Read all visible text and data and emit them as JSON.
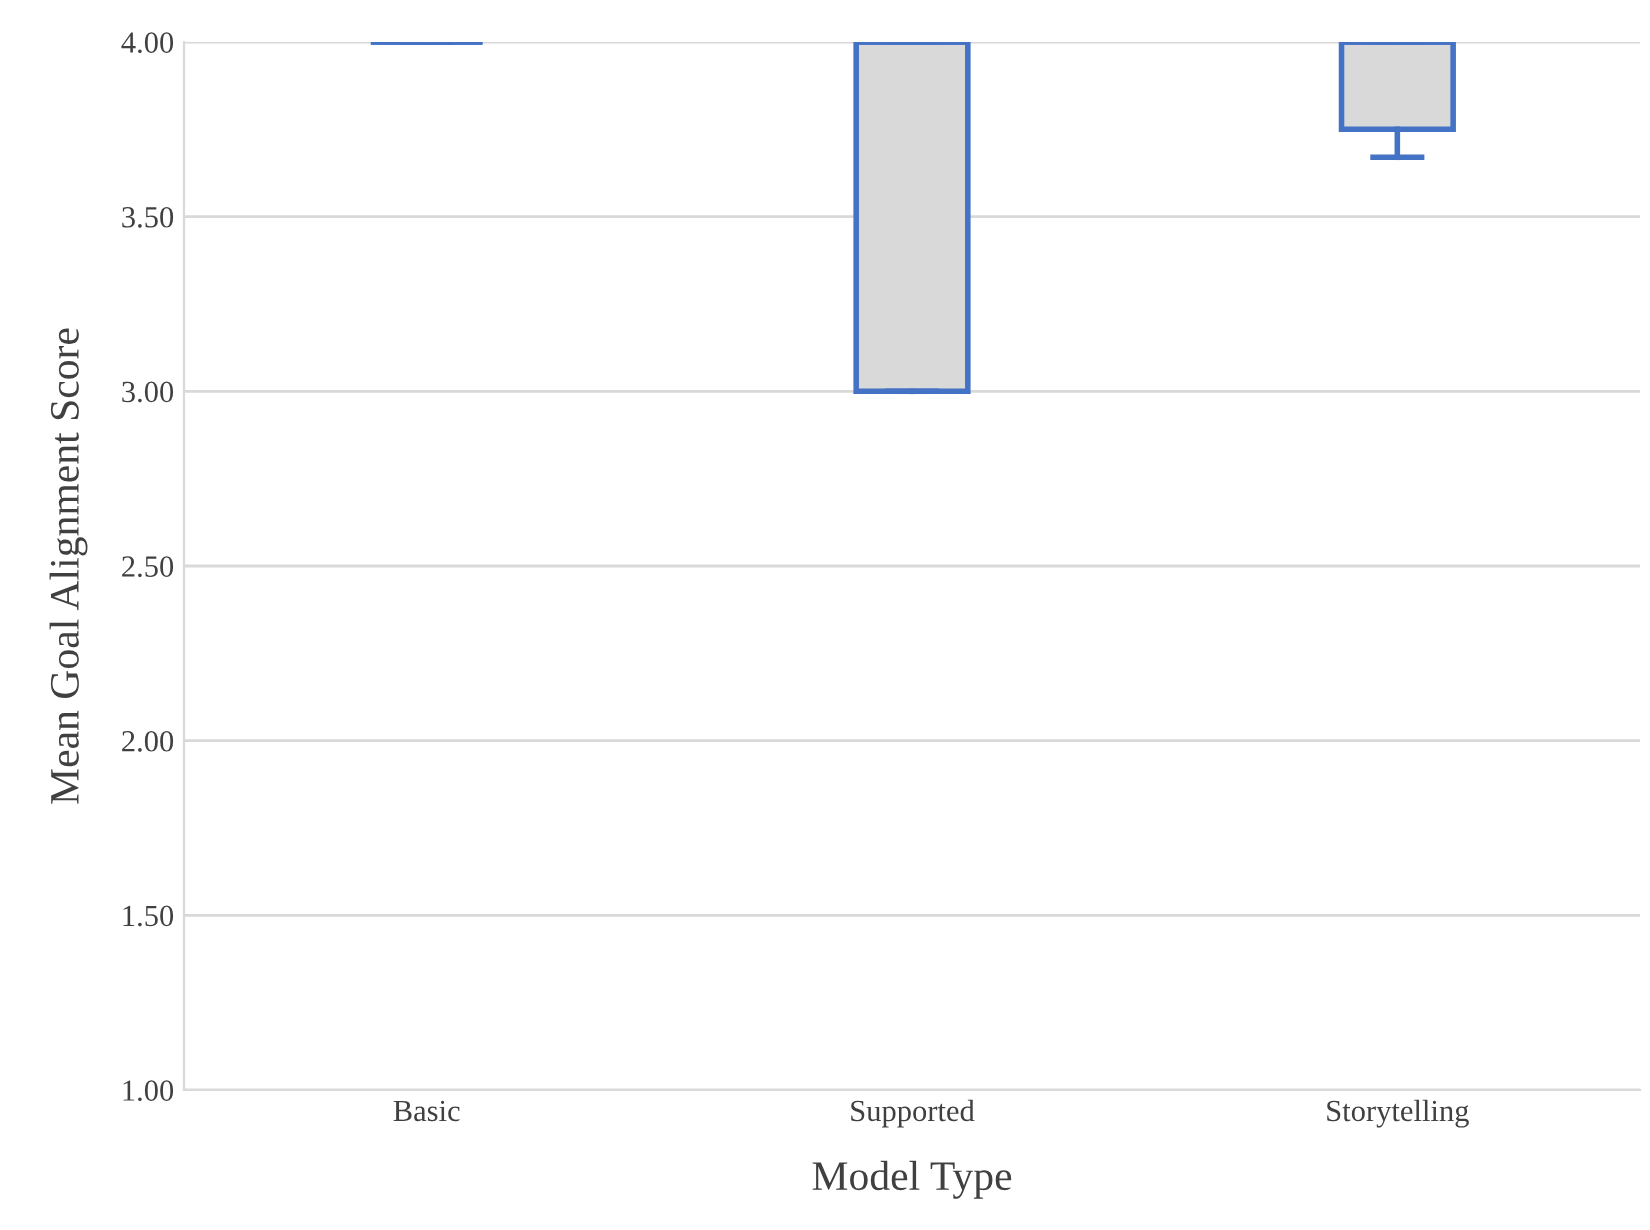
{
  "chart_data": {
    "type": "box",
    "xlabel": "Model Type",
    "ylabel": "Mean Goal Alignment Score",
    "categories": [
      "Basic",
      "Supported",
      "Storytelling"
    ],
    "boxes": [
      {
        "low": 4.0,
        "q1": 4.0,
        "median": 4.0,
        "q3": 4.0,
        "high": 4.0
      },
      {
        "low": 3.0,
        "q1": 3.0,
        "median": 4.0,
        "q3": 4.0,
        "high": 4.0
      },
      {
        "low": 3.67,
        "q1": 3.75,
        "median": 4.0,
        "q3": 4.0,
        "high": 4.0
      }
    ],
    "color": "#4472c4",
    "ylim": [
      1.0,
      4.0
    ],
    "yticks": [
      {
        "value": 1.0,
        "label": "1.00"
      },
      {
        "value": 1.5,
        "label": "1.50"
      },
      {
        "value": 2.0,
        "label": "2.00"
      },
      {
        "value": 2.5,
        "label": "2.50"
      },
      {
        "value": 3.0,
        "label": "3.00"
      },
      {
        "value": 3.5,
        "label": "3.50"
      },
      {
        "value": 4.0,
        "label": "4.00"
      }
    ],
    "grid": "y",
    "legend": false
  }
}
